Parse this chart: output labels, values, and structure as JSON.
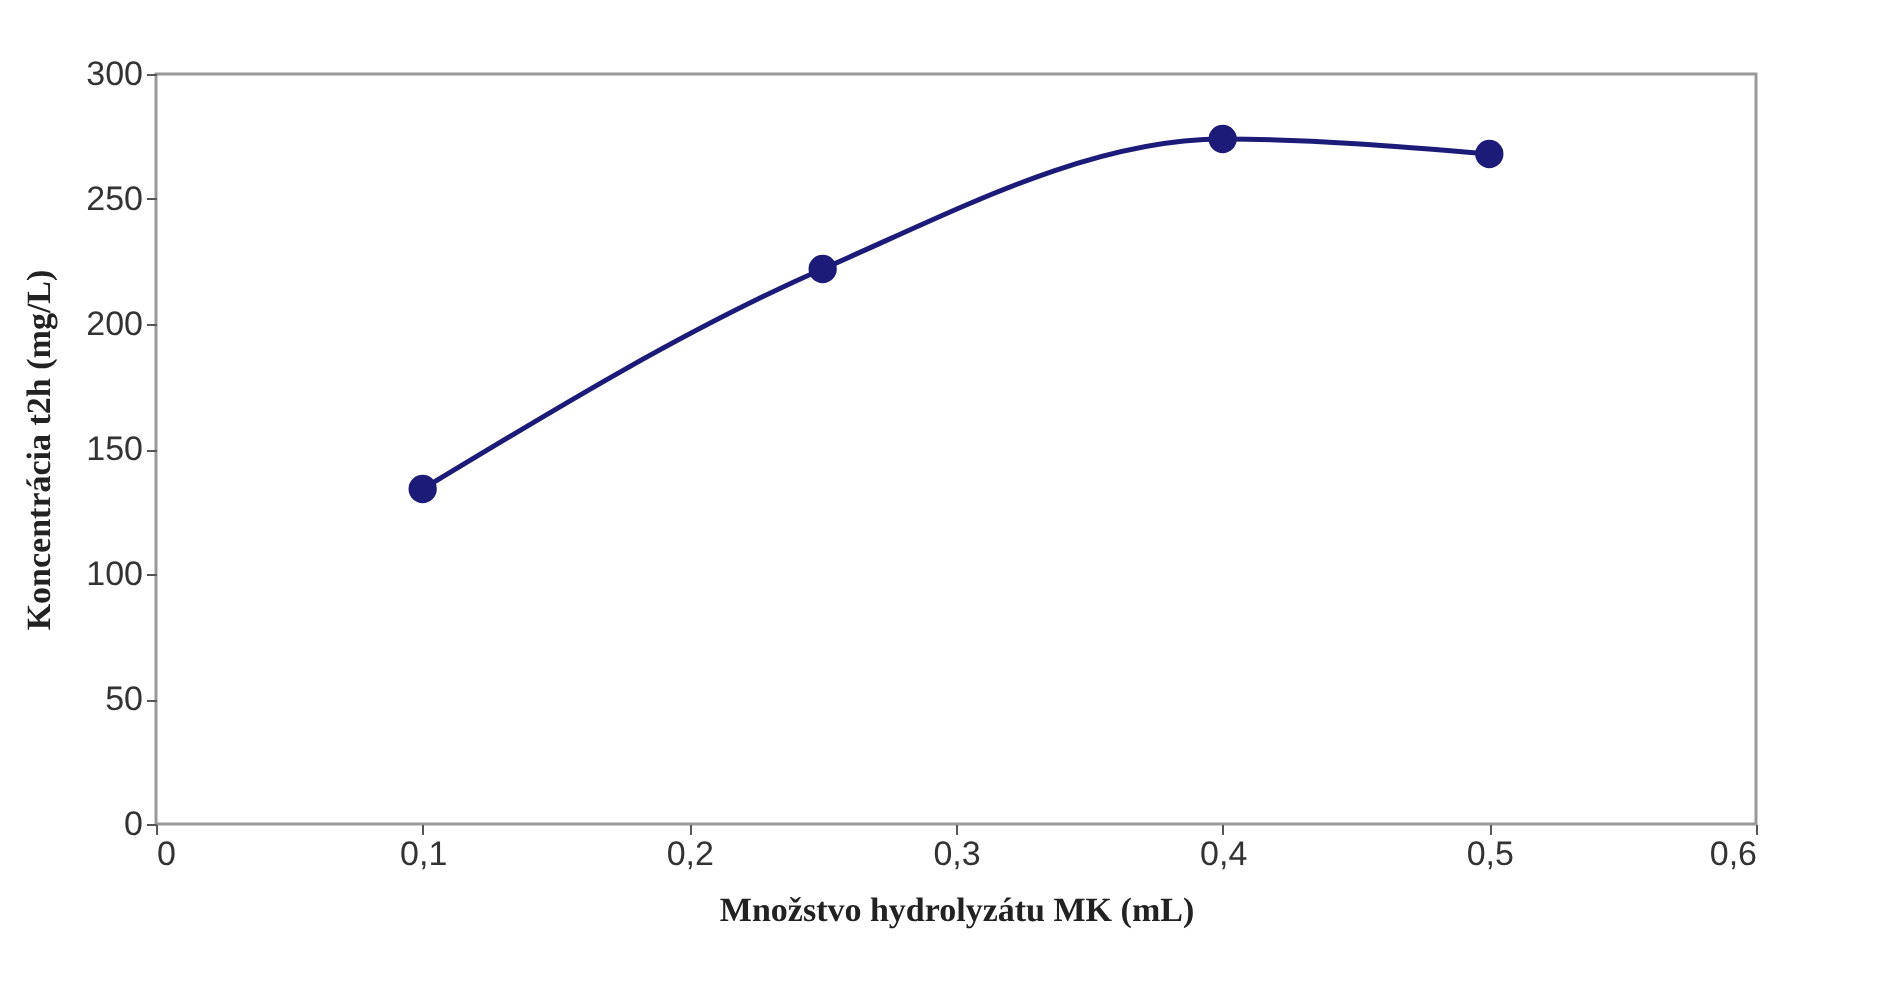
{
  "chart_data": {
    "type": "line",
    "xlabel": "Množstvo hydrolyzátu MK (mL)",
    "ylabel": "Koncentrácia t2h (mg/L)",
    "x": [
      0.1,
      0.25,
      0.4,
      0.5
    ],
    "series": [
      {
        "color": "#1c1c78",
        "values": [
          134,
          222,
          274,
          268
        ]
      }
    ],
    "marker": "circle",
    "grid": false,
    "legend": false,
    "xlim": [
      0,
      0.6
    ],
    "xticks": [
      {
        "value": 0,
        "label": "0"
      },
      {
        "value": 0.1,
        "label": "0,1"
      },
      {
        "value": 0.2,
        "label": "0,2"
      },
      {
        "value": 0.3,
        "label": "0,3"
      },
      {
        "value": 0.4,
        "label": "0,4"
      },
      {
        "value": 0.5,
        "label": "0,5"
      },
      {
        "value": 0.6,
        "label": "0,6"
      }
    ],
    "ylim": [
      0,
      300
    ],
    "yticks": [
      0,
      50,
      100,
      150,
      200,
      250,
      300
    ]
  }
}
